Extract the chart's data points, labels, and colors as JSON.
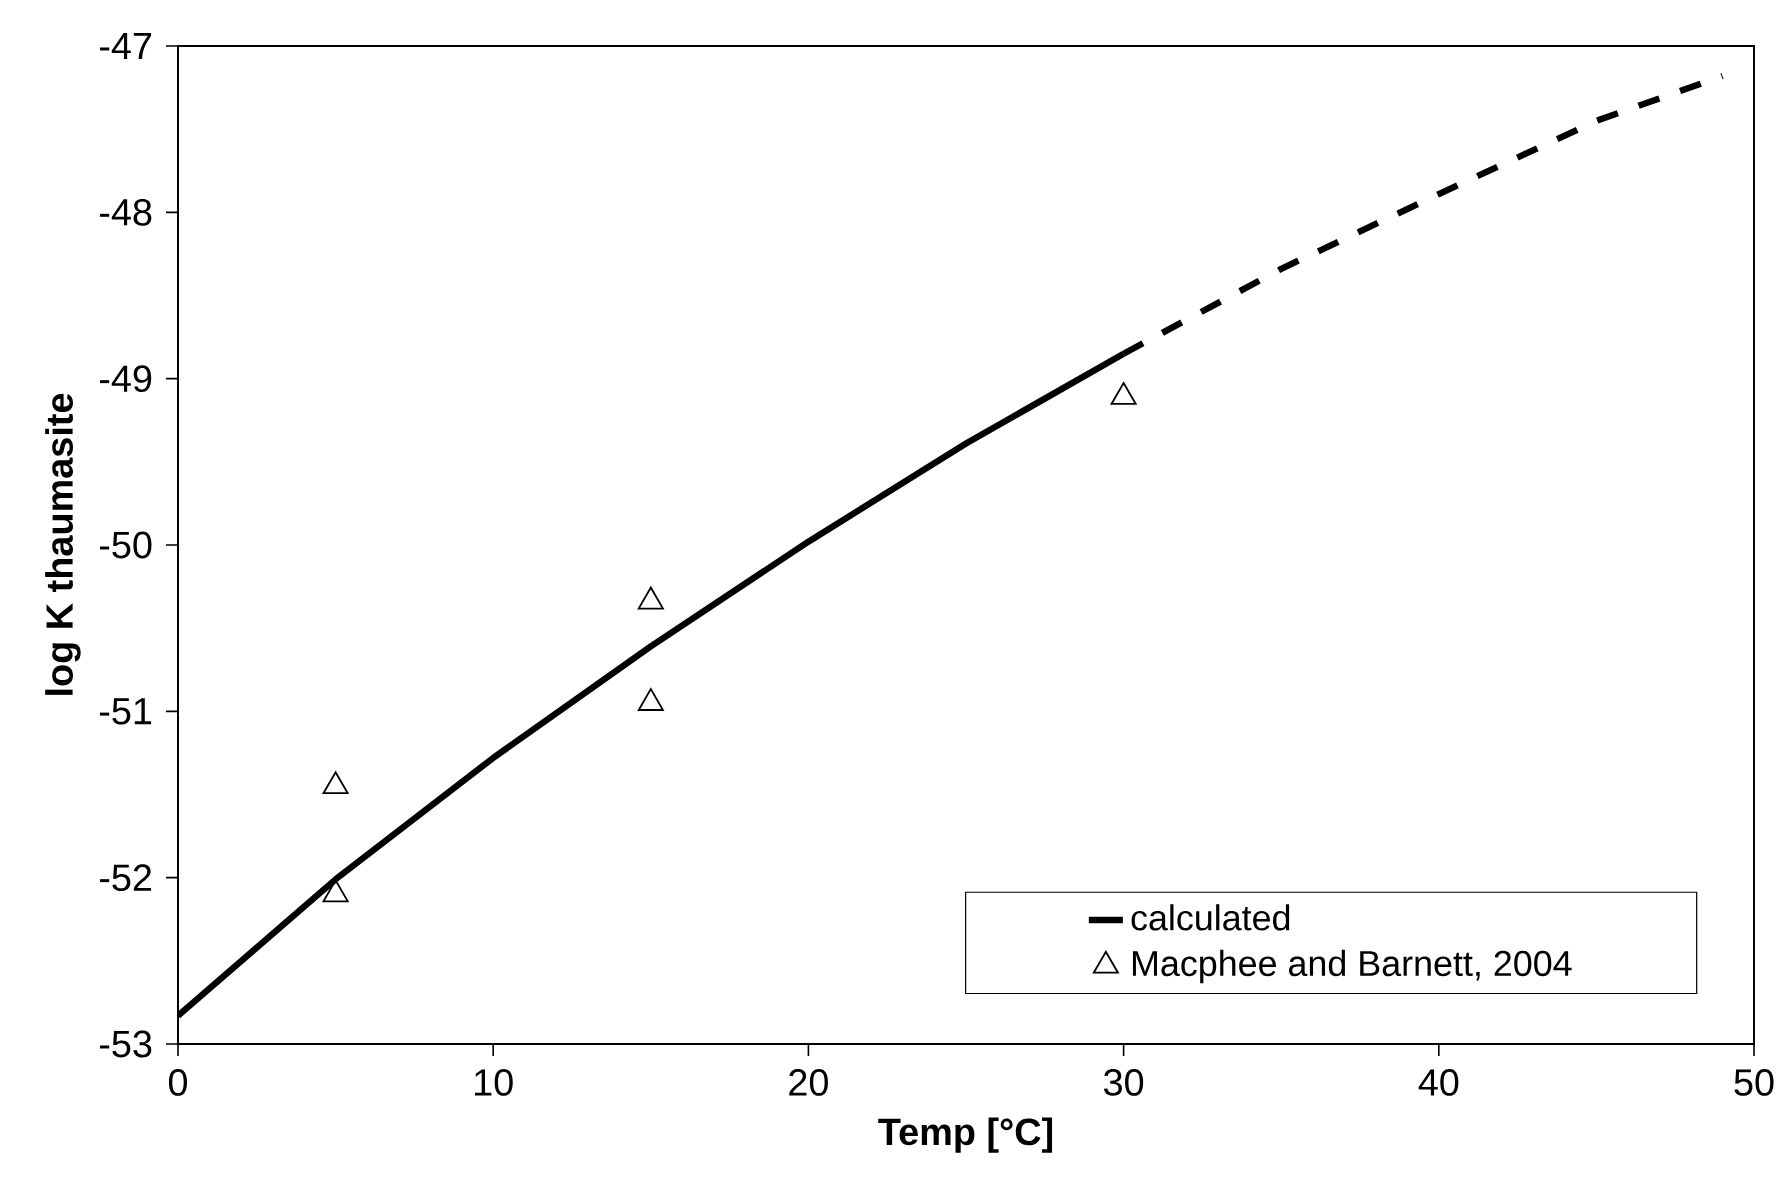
{
  "chart_data": {
    "type": "line",
    "xlabel": "Temp [°C]",
    "ylabel": "log K thaumasite",
    "xlim": [
      0,
      50
    ],
    "xticks": [
      0,
      10,
      20,
      30,
      40,
      50
    ],
    "ylim": [
      -53,
      -47
    ],
    "yticks": [
      -53,
      -52,
      -51,
      -50,
      -49,
      -48,
      -47
    ],
    "grid": false,
    "legend": "bottom right",
    "series": [
      {
        "name": "calculated",
        "type": "line",
        "color": "#000000",
        "line_style": "solid",
        "marker": "none",
        "x": [
          0,
          5,
          10,
          15,
          20,
          25,
          27.5,
          30
        ],
        "values": [
          -52.83,
          -52.01,
          -51.28,
          -50.61,
          -49.98,
          -49.39,
          -49.12,
          -48.85
        ]
      },
      {
        "type": "line",
        "color": "#000000",
        "line_style": "dashed",
        "marker": "none",
        "x": [
          30,
          35,
          40,
          45,
          49
        ],
        "values": [
          -48.85,
          -48.34,
          -47.89,
          -47.45,
          -47.18
        ]
      },
      {
        "name": "Macphee and Barnett, 2004",
        "type": "scatter",
        "color": "#000000",
        "marker": "triangle",
        "x": [
          5,
          5,
          15,
          15,
          30
        ],
        "values": [
          -51.45,
          -52.1,
          -50.34,
          -50.95,
          -49.11
        ]
      }
    ]
  }
}
